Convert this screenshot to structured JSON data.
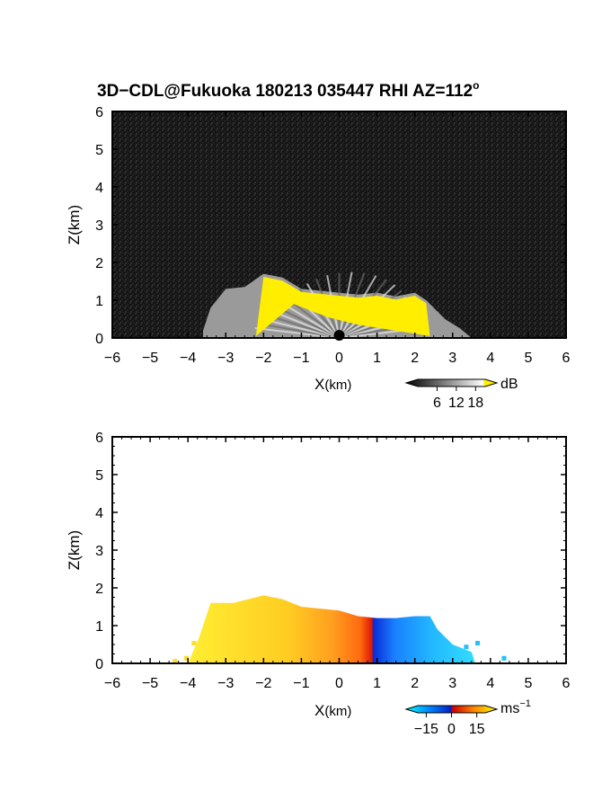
{
  "title": "3D−CDL@Fukuoka 180213 035447 RHI AZ=112",
  "title_superscript": "o",
  "colors": {
    "background_top": "#111111",
    "echo_yellow": "#ffee00",
    "axis": "#000000"
  },
  "chart_data": [
    {
      "type": "heatmap",
      "name": "reflectivity",
      "xlabel_main": "X",
      "xlabel_unit": "(km)",
      "ylabel": "Z(km)",
      "xlim": [
        -6,
        6
      ],
      "ylim": [
        0,
        6
      ],
      "xticks": [
        "−6",
        "−5",
        "−4",
        "−3",
        "−2",
        "−1",
        "0",
        "1",
        "2",
        "3",
        "4",
        "5",
        "6"
      ],
      "yticks": [
        "0",
        "1",
        "2",
        "3",
        "4",
        "5",
        "6"
      ],
      "colorbar": {
        "ticks": [
          "6",
          "12",
          "18"
        ],
        "unit": "dB",
        "range": [
          0,
          21
        ]
      },
      "echo_top_profile": [
        {
          "x": -3.6,
          "z": 0.2
        },
        {
          "x": -3.4,
          "z": 0.8
        },
        {
          "x": -3.0,
          "z": 1.3
        },
        {
          "x": -2.5,
          "z": 1.35
        },
        {
          "x": -2.0,
          "z": 1.7
        },
        {
          "x": -1.5,
          "z": 1.6
        },
        {
          "x": -1.0,
          "z": 1.3
        },
        {
          "x": -0.5,
          "z": 1.25
        },
        {
          "x": 0.0,
          "z": 1.2
        },
        {
          "x": 0.5,
          "z": 1.15
        },
        {
          "x": 1.0,
          "z": 1.2
        },
        {
          "x": 1.5,
          "z": 1.1
        },
        {
          "x": 2.0,
          "z": 1.2
        },
        {
          "x": 2.3,
          "z": 1.0
        },
        {
          "x": 2.8,
          "z": 0.5
        },
        {
          "x": 3.2,
          "z": 0.25
        },
        {
          "x": 3.5,
          "z": 0.0
        }
      ],
      "saturated_region_x": [
        -2.2,
        2.4
      ]
    },
    {
      "type": "heatmap",
      "name": "doppler_velocity",
      "xlabel_main": "X",
      "xlabel_unit": "(km)",
      "ylabel": "Z(km)",
      "xlim": [
        -6,
        6
      ],
      "ylim": [
        0,
        6
      ],
      "xticks": [
        "−6",
        "−5",
        "−4",
        "−3",
        "−2",
        "−1",
        "0",
        "1",
        "2",
        "3",
        "4",
        "5",
        "6"
      ],
      "yticks": [
        "0",
        "1",
        "2",
        "3",
        "4",
        "5",
        "6"
      ],
      "colorbar": {
        "ticks": [
          "−15",
          "0",
          "15"
        ],
        "unit": "ms",
        "unit_sup": "−1",
        "range": [
          -20,
          20
        ]
      },
      "echo_top_profile": [
        {
          "x": -4.0,
          "z": 0.0
        },
        {
          "x": -3.7,
          "z": 0.7
        },
        {
          "x": -3.4,
          "z": 1.6
        },
        {
          "x": -2.8,
          "z": 1.6
        },
        {
          "x": -2.0,
          "z": 1.8
        },
        {
          "x": -1.5,
          "z": 1.7
        },
        {
          "x": -1.0,
          "z": 1.5
        },
        {
          "x": -0.5,
          "z": 1.45
        },
        {
          "x": 0.0,
          "z": 1.4
        },
        {
          "x": 0.5,
          "z": 1.25
        },
        {
          "x": 1.0,
          "z": 1.2
        },
        {
          "x": 1.5,
          "z": 1.2
        },
        {
          "x": 2.0,
          "z": 1.25
        },
        {
          "x": 2.4,
          "z": 1.25
        },
        {
          "x": 2.6,
          "z": 0.9
        },
        {
          "x": 3.0,
          "z": 0.5
        },
        {
          "x": 3.5,
          "z": 0.3
        },
        {
          "x": 3.6,
          "z": 0.0
        }
      ]
    }
  ]
}
